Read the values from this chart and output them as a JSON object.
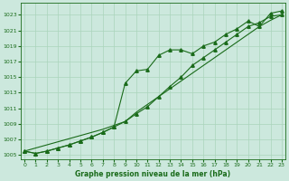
{
  "xlabel": "Graphe pression niveau de la mer (hPa)",
  "x": [
    0,
    1,
    2,
    3,
    4,
    5,
    6,
    7,
    8,
    9,
    10,
    11,
    12,
    13,
    14,
    15,
    16,
    17,
    18,
    19,
    20,
    21,
    22,
    23
  ],
  "line_straight": [
    1005.5,
    1005.9,
    1006.3,
    1006.7,
    1007.1,
    1007.5,
    1007.9,
    1008.3,
    1008.8,
    1009.3,
    1010.5,
    1011.5,
    1012.5,
    1013.5,
    1014.5,
    1015.5,
    1016.5,
    1017.5,
    1018.5,
    1019.5,
    1020.5,
    1021.5,
    1022.3,
    1023.0
  ],
  "line_mid": [
    1005.5,
    1005.2,
    1005.5,
    1005.9,
    1006.3,
    1006.8,
    1007.3,
    1007.9,
    1008.6,
    1009.3,
    1010.3,
    1011.2,
    1012.5,
    1013.8,
    1015.0,
    1016.5,
    1017.5,
    1018.5,
    1019.5,
    1020.5,
    1021.5,
    1022.0,
    1022.8,
    1023.0
  ],
  "line_top": [
    1005.5,
    1005.2,
    1005.5,
    1005.9,
    1006.3,
    1006.8,
    1007.3,
    1007.9,
    1008.6,
    1014.2,
    1015.8,
    1016.0,
    1017.8,
    1018.5,
    1018.5,
    1018.0,
    1019.0,
    1019.5,
    1020.5,
    1021.2,
    1022.2,
    1021.5,
    1023.2,
    1023.5
  ],
  "line_color": "#1a6b1a",
  "bg_color": "#cce8dd",
  "grid_color": "#aad4bb",
  "ylim_min": 1004.5,
  "ylim_max": 1024.5,
  "yticks": [
    1005,
    1007,
    1009,
    1011,
    1013,
    1015,
    1017,
    1019,
    1021,
    1023
  ],
  "xticks": [
    0,
    1,
    2,
    3,
    4,
    5,
    6,
    7,
    8,
    9,
    10,
    11,
    12,
    13,
    14,
    15,
    16,
    17,
    18,
    19,
    20,
    21,
    22,
    23
  ]
}
